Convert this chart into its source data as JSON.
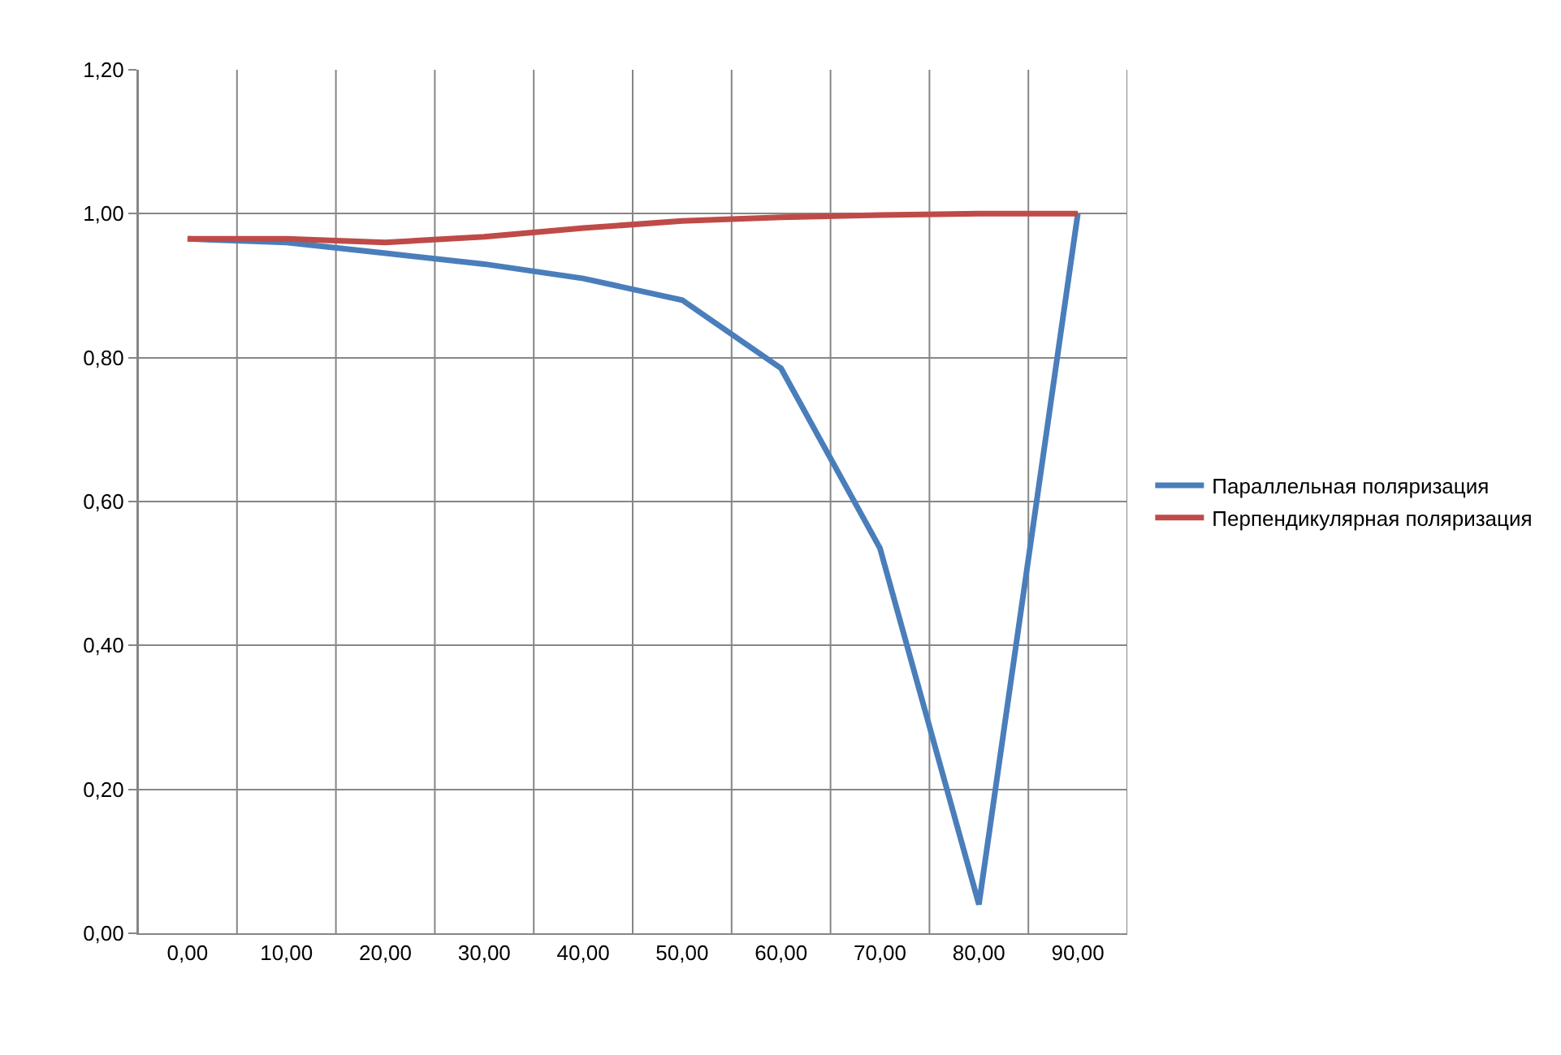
{
  "chart_data": {
    "type": "line",
    "categories": [
      "0,00",
      "10,00",
      "20,00",
      "30,00",
      "40,00",
      "50,00",
      "60,00",
      "70,00",
      "80,00",
      "90,00"
    ],
    "series": [
      {
        "name": "Параллельная поляризация",
        "color": "#4a7ebb",
        "values": [
          0.965,
          0.96,
          0.945,
          0.93,
          0.91,
          0.88,
          0.785,
          0.535,
          0.04,
          1.0
        ]
      },
      {
        "name": "Перпендикулярная поляризация",
        "color": "#be4b48",
        "values": [
          0.965,
          0.965,
          0.96,
          0.968,
          0.98,
          0.99,
          0.995,
          0.998,
          1.0,
          1.0
        ]
      }
    ],
    "ylim": [
      0,
      1.2
    ],
    "yticks": [
      {
        "value": 0,
        "label": "0,00"
      },
      {
        "value": 0.2,
        "label": "0,20"
      },
      {
        "value": 0.4,
        "label": "0,40"
      },
      {
        "value": 0.6,
        "label": "0,60"
      },
      {
        "value": 0.8,
        "label": "0,80"
      },
      {
        "value": 1.0,
        "label": "1,00"
      },
      {
        "value": 1.2,
        "label": "1,20"
      }
    ],
    "grid": true,
    "legend": "right",
    "marker": "none",
    "line_style": "solid"
  }
}
